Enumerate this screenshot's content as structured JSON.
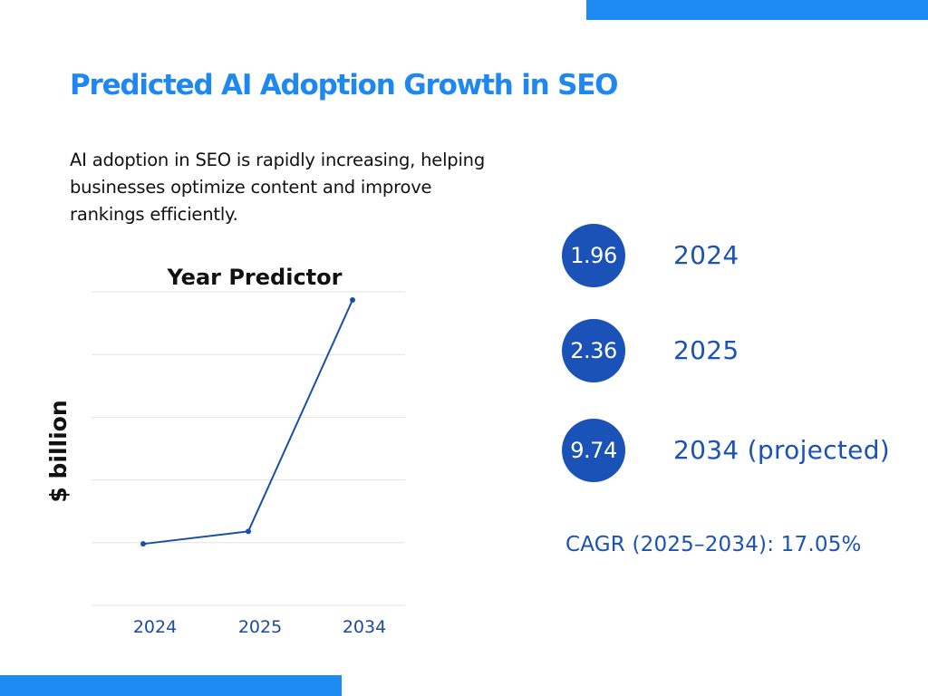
{
  "colors": {
    "accent_bar": "#1E8BF5",
    "title": "#1E88F0",
    "dark_blue": "#1A52B8",
    "line": "#1A4FA8",
    "grid": "#E3E3E3",
    "tick": "#1F4A9C"
  },
  "page": {
    "title": "Predicted AI Adoption Growth in SEO",
    "description": "AI adoption in SEO is rapidly increasing, helping businesses optimize content and improve rankings efficiently."
  },
  "stats": [
    {
      "value": "1.96",
      "label": "2024"
    },
    {
      "value": "2.36",
      "label": "2025"
    },
    {
      "value": "9.74",
      "label": "2034  (projected)"
    }
  ],
  "cagr": "CAGR (2025–2034): 17.05%",
  "chart_data": {
    "type": "line",
    "title": "Year Predictor",
    "xlabel": "",
    "ylabel": "$ billion",
    "categories": [
      "2024",
      "2025",
      "2034"
    ],
    "series": [
      {
        "values": [
          1.96,
          2.36,
          9.74
        ]
      }
    ],
    "ylim": [
      0,
      10
    ],
    "grid": true,
    "legend": "none"
  }
}
